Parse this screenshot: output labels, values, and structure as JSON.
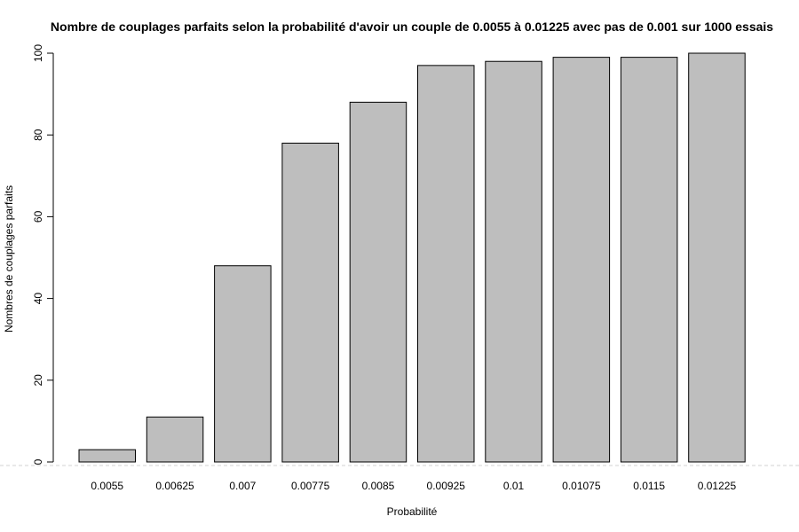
{
  "chart_data": {
    "type": "bar",
    "title": "Nombre de couplages parfaits selon la probabilité d'avoir un couple de 0.0055 à 0.01225 avec pas de 0.001 sur 1000 essais",
    "xlabel": "Probabilité",
    "ylabel": "Nombres de couplages parfaits",
    "categories": [
      "0.0055",
      "0.00625",
      "0.007",
      "0.00775",
      "0.0085",
      "0.00925",
      "0.01",
      "0.01075",
      "0.0115",
      "0.01225"
    ],
    "values": [
      3,
      11,
      48,
      78,
      88,
      97,
      98,
      99,
      99,
      100
    ],
    "ylim": [
      0,
      100
    ],
    "yticks": [
      0,
      20,
      40,
      60,
      80,
      100
    ],
    "grid": false,
    "bar_color": "#bebebe",
    "bar_border_color": "#000000",
    "baseline_color": "#d3d3d3"
  }
}
